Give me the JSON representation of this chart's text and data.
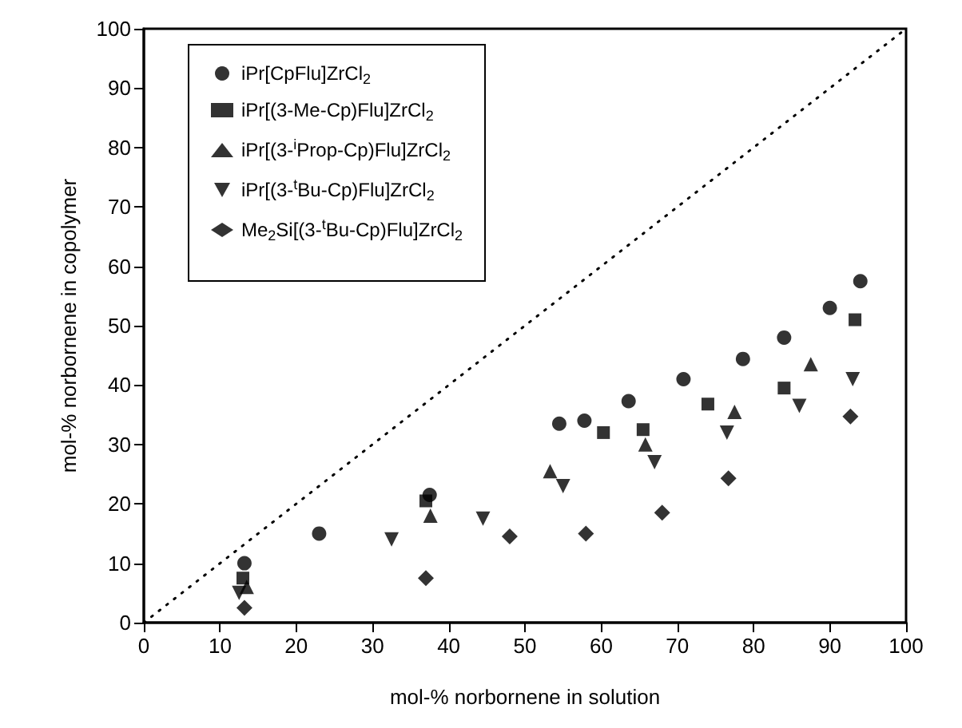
{
  "chart_data": {
    "type": "scatter",
    "xlabel": "mol-% norbornene in solution",
    "ylabel": "mol-% norbornene in copolymer",
    "xlim": [
      0,
      100
    ],
    "ylim": [
      0,
      100
    ],
    "xticks": [
      0,
      10,
      20,
      30,
      40,
      50,
      60,
      70,
      80,
      90,
      100
    ],
    "yticks": [
      0,
      10,
      20,
      30,
      40,
      50,
      60,
      70,
      80,
      90,
      100
    ],
    "grid": false,
    "legend": "top left",
    "series": [
      {
        "name": "iPr[CpFlu]ZrCl$_{2}$",
        "color": "#000000",
        "marker": "circle",
        "x": [
          13.2,
          23,
          37.5,
          54.5,
          57.8,
          63.6,
          70.8,
          78.6,
          84,
          90,
          94
        ],
        "values": [
          10,
          15,
          21.5,
          33.5,
          34,
          37.3,
          41,
          44.4,
          48,
          53,
          57.5
        ]
      },
      {
        "name": "iPr[(3-Me-Cp)Flu]ZrCl$_{2}$",
        "color": "#000000",
        "marker": "square",
        "x": [
          13,
          37,
          60.3,
          65.5,
          74,
          84,
          93.3
        ],
        "values": [
          7.5,
          20.5,
          32,
          32.5,
          36.8,
          39.5,
          51
        ]
      },
      {
        "name": "iPr[(3-$^{i}$Prop-Cp)Flu]ZrCl$_{2}$",
        "color": "#000000",
        "marker": "triangle",
        "x": [
          13.5,
          37.6,
          53.3,
          65.8,
          77.5,
          87.5
        ],
        "values": [
          6,
          18,
          25.5,
          30,
          35.5,
          43.5
        ]
      },
      {
        "name": "iPr[(3-$^{t}$Bu-Cp)Flu]ZrCl$_{2}$",
        "color": "#000000",
        "marker": "triangle-down",
        "x": [
          12.5,
          32.5,
          44.5,
          55,
          67,
          76.5,
          86,
          93
        ],
        "values": [
          5,
          14,
          17.5,
          23,
          27,
          32,
          36.5,
          41
        ]
      },
      {
        "name": "Me$_{2}$Si[(3-$^{t}$Bu-Cp)Flu]ZrCl$_{2}$",
        "color": "#000000",
        "marker": "diamond",
        "x": [
          13.2,
          37,
          48,
          58,
          68,
          76.7,
          92.7
        ],
        "values": [
          2.5,
          7.5,
          14.5,
          15,
          18.5,
          24.3,
          34.7
        ]
      },
      {
        "type": "line",
        "color": "#000000",
        "line_style": "dotted",
        "marker": "none",
        "x": [
          0,
          100
        ],
        "values": [
          0,
          100
        ]
      }
    ]
  }
}
